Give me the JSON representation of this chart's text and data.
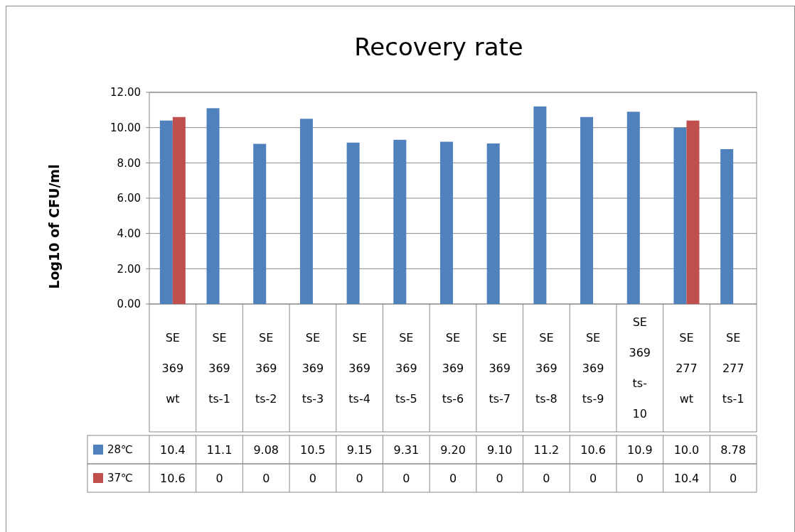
{
  "chart_data": {
    "type": "bar",
    "title": "Recovery rate",
    "ylabel": "Log10 of CFU/ml",
    "categories": [
      "SE 369 wt",
      "SE 369 ts-1",
      "SE 369 ts-2",
      "SE 369 ts-3",
      "SE 369 ts-4",
      "SE 369 ts-5",
      "SE 369 ts-6",
      "SE 369 ts-7",
      "SE 369 ts-8",
      "SE 369 ts-9",
      "SE 369 ts-10",
      "SE 277 wt",
      "SE 277 ts-1"
    ],
    "series": [
      {
        "name": "28℃",
        "color": "#4f81bd",
        "values": [
          10.4,
          11.1,
          9.08,
          10.5,
          9.15,
          9.31,
          9.2,
          9.1,
          11.2,
          10.6,
          10.9,
          10.0,
          8.78
        ],
        "value_labels": [
          "10.4",
          "11.1",
          "9.08",
          "10.5",
          "9.15",
          "9.31",
          "9.20",
          "9.10",
          "11.2",
          "10.6",
          "10.9",
          "10.0",
          "8.78"
        ]
      },
      {
        "name": "37℃",
        "color": "#c0504d",
        "values": [
          10.6,
          0,
          0,
          0,
          0,
          0,
          0,
          0,
          0,
          0,
          0,
          10.4,
          0
        ],
        "value_labels": [
          "10.6",
          "0",
          "0",
          "0",
          "0",
          "0",
          "0",
          "0",
          "0",
          "0",
          "0",
          "10.4",
          "0"
        ]
      }
    ],
    "ylim": [
      0,
      12
    ],
    "yticks": [
      {
        "value": 0,
        "label": "0.00"
      },
      {
        "value": 2,
        "label": "2.00"
      },
      {
        "value": 4,
        "label": "4.00"
      },
      {
        "value": 6,
        "label": "6.00"
      },
      {
        "value": 8,
        "label": "8.00"
      },
      {
        "value": 10,
        "label": "10.00"
      },
      {
        "value": 12,
        "label": "12.00"
      }
    ],
    "grid": "y",
    "legend": "bottom"
  }
}
